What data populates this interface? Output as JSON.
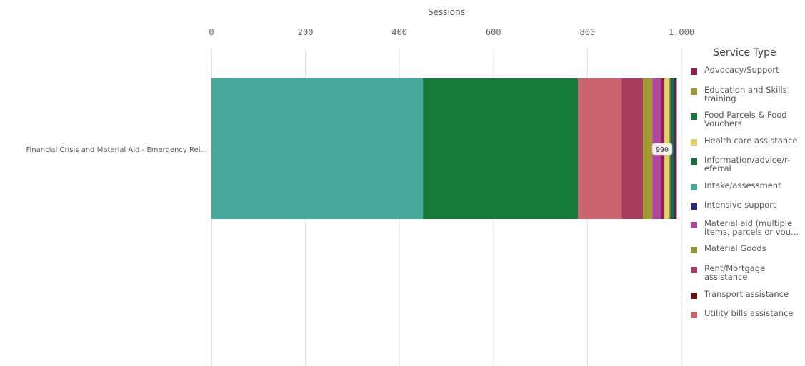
{
  "chart_data": {
    "type": "bar",
    "orientation": "horizontal",
    "stacked": true,
    "title": "",
    "xlabel": "Sessions",
    "ylabel": "",
    "xlim": [
      0,
      1000
    ],
    "x_ticks": [
      "0",
      "200",
      "400",
      "600",
      "800",
      "1,000"
    ],
    "x_axis_position": "top",
    "grid": true,
    "categories": [
      "Financial Crisis and Material Aid - Emergency Rel..."
    ],
    "total_label": "990",
    "legend": {
      "title": "Service Type",
      "position": "right"
    },
    "series": [
      {
        "name": "Intake/assessment",
        "color": "#47a99a",
        "values": [
          450
        ]
      },
      {
        "name": "Food Parcels & Food Vouchers",
        "color": "#167a3a",
        "values": [
          330
        ]
      },
      {
        "name": "Utility bills assistance",
        "color": "#c8636f",
        "values": [
          93
        ]
      },
      {
        "name": "Rent/Mortgage assistance",
        "color": "#a53e5c",
        "values": [
          45
        ]
      },
      {
        "name": "Education and Skills training",
        "color": "#a09a30",
        "values": [
          20
        ]
      },
      {
        "name": "Material aid (multiple items, parcels or vou...",
        "color": "#b245a0",
        "values": [
          18
        ]
      },
      {
        "name": "Advocacy/Support",
        "color": "#8b2252",
        "values": [
          8
        ]
      },
      {
        "name": "Health care assistance",
        "color": "#e8cf6a",
        "values": [
          9
        ]
      },
      {
        "name": "Material Goods",
        "color": "#94943a",
        "values": [
          3
        ]
      },
      {
        "name": "Information/advice/r-eferral",
        "color": "#1a6b3a",
        "values": [
          8
        ]
      },
      {
        "name": "Intensive support",
        "color": "#2a2a85",
        "values": [
          3
        ]
      },
      {
        "name": "Transport assistance",
        "color": "#6b0f0f",
        "values": [
          3
        ]
      }
    ]
  },
  "legend_order": [
    {
      "label": "Advocacy/Support",
      "color": "#8b2252"
    },
    {
      "label": "Education and Skills training",
      "color": "#a09a30"
    },
    {
      "label": "Food Parcels & Food Vouchers",
      "color": "#167a3a"
    },
    {
      "label": "Health care assistance",
      "color": "#e8cf6a"
    },
    {
      "label": "Information/advice/r-eferral",
      "color": "#1a6b3a"
    },
    {
      "label": "Intake/assessment",
      "color": "#47a99a"
    },
    {
      "label": "Intensive support",
      "color": "#2a2a85"
    },
    {
      "label": "Material aid (multiple items, parcels or vou...",
      "color": "#b245a0"
    },
    {
      "label": "Material Goods",
      "color": "#94943a"
    },
    {
      "label": "Rent/Mortgage assistance",
      "color": "#a53e5c"
    },
    {
      "label": "Transport assistance",
      "color": "#6b0f0f"
    },
    {
      "label": "Utility bills assistance",
      "color": "#c8636f"
    }
  ]
}
